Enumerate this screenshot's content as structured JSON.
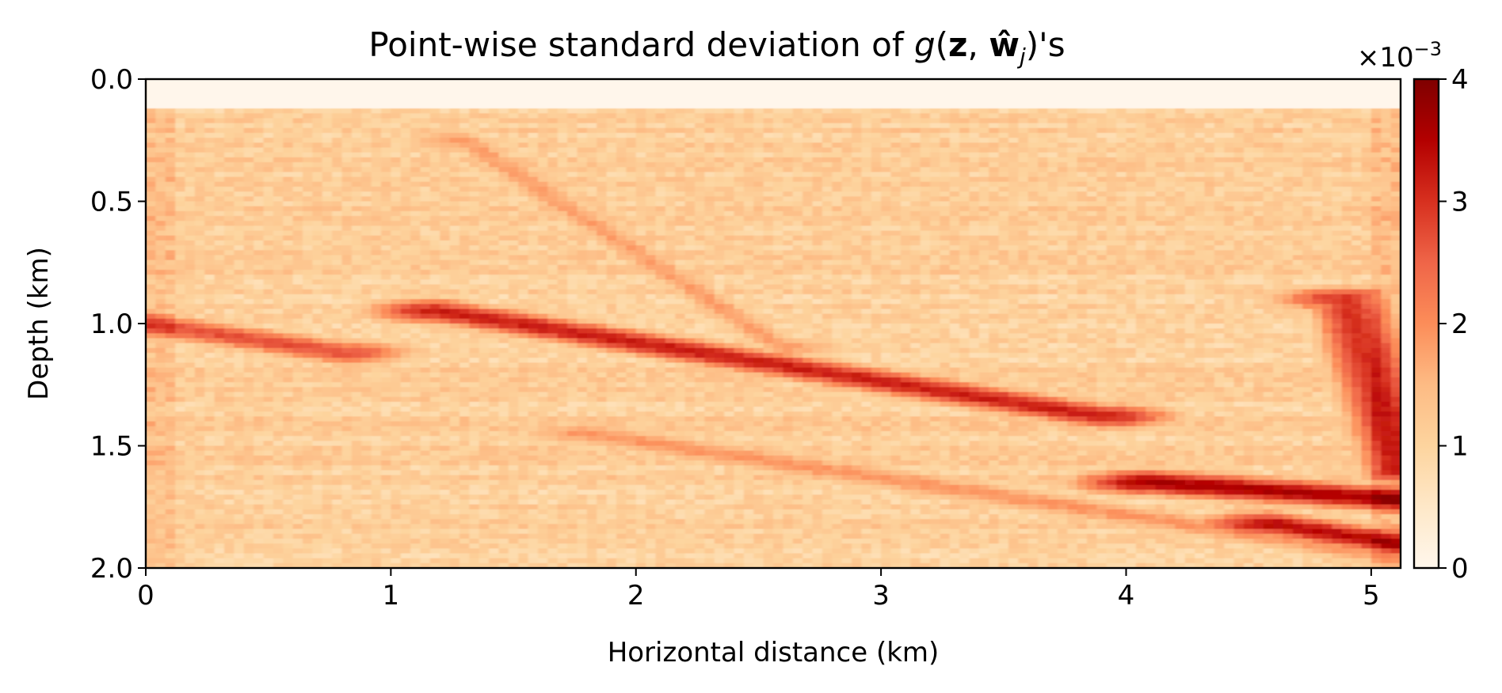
{
  "chart_data": {
    "type": "heatmap",
    "title": {
      "prefix": "Point-wise standard deviation of ",
      "g": "g",
      "open": "(",
      "z": "z",
      "comma": ", ",
      "w_hat": "ŵ",
      "sub_j": "j",
      "close": ")'s"
    },
    "xlabel": "Horizontal distance (km)",
    "ylabel": "Depth (km)",
    "xlim": [
      0,
      5.12
    ],
    "ylim": [
      2.0,
      0.0
    ],
    "x_ticks": [
      0,
      1,
      2,
      3,
      4,
      5
    ],
    "x_tick_labels": [
      "0",
      "1",
      "2",
      "3",
      "4",
      "5"
    ],
    "y_ticks": [
      0.0,
      0.5,
      1.0,
      1.5,
      2.0
    ],
    "y_tick_labels": [
      "0.0",
      "0.5",
      "1.0",
      "1.5",
      "2.0"
    ],
    "colorbar": {
      "colormap": "OrRd",
      "vmin": 0,
      "vmax": 4,
      "ticks": [
        0,
        1,
        2,
        3,
        4
      ],
      "tick_labels": [
        "0",
        "1",
        "2",
        "3",
        "4"
      ],
      "scale_label": "×10",
      "scale_exponent": "−3"
    },
    "water_layer_depth_km": 0.13,
    "background_value": 1.1,
    "features": [
      {
        "name": "shallow dipping reflector",
        "x": [
          1.3,
          2.6
        ],
        "y": [
          0.25,
          1.1
        ],
        "value": 1.8
      },
      {
        "name": "left reflector",
        "x": [
          0.0,
          0.8
        ],
        "y": [
          1.0,
          1.12
        ],
        "value": 2.7
      },
      {
        "name": "main dipping reflector",
        "x": [
          1.2,
          3.9
        ],
        "y": [
          0.95,
          1.38
        ],
        "value": 3.2
      },
      {
        "name": "lower dipping reflector",
        "x": [
          1.8,
          5.1
        ],
        "y": [
          1.45,
          1.95
        ],
        "value": 1.9
      },
      {
        "name": "right deep reflector",
        "x": [
          4.1,
          5.1
        ],
        "y": [
          1.65,
          1.72
        ],
        "value": 3.6
      },
      {
        "name": "right deep reflector 2",
        "x": [
          4.6,
          5.1
        ],
        "y": [
          1.82,
          1.9
        ],
        "value": 3.4
      },
      {
        "name": "right edge band",
        "x": [
          4.9,
          5.12
        ],
        "y": [
          0.9,
          1.6
        ],
        "value": 3.0
      }
    ],
    "colors": {
      "cmap": [
        "#fff7ec",
        "#fee8c8",
        "#fdd49e",
        "#fdbb84",
        "#fc8d59",
        "#ef6548",
        "#d7301f",
        "#b30000",
        "#7f0000"
      ]
    }
  }
}
